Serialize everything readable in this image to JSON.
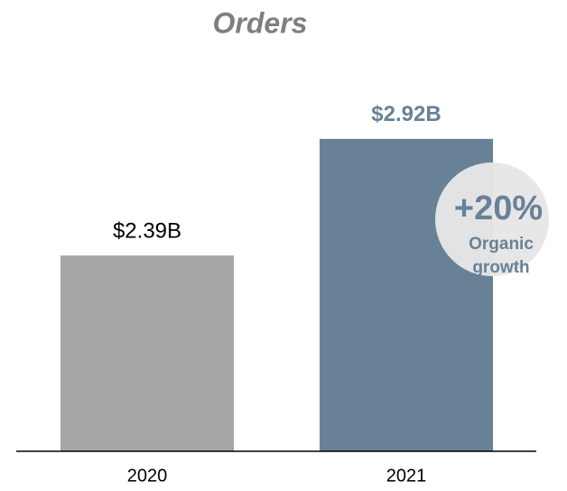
{
  "chart_data": {
    "type": "bar",
    "title": "Orders",
    "categories": [
      "2020",
      "2021"
    ],
    "values": [
      2.39,
      2.92
    ],
    "value_labels": [
      "$2.39B",
      "$2.92B"
    ],
    "colors": [
      "#a6a6a6",
      "#688197"
    ],
    "ylim": [
      1.5,
      3.1
    ],
    "annotation": {
      "headline": "+20%",
      "lines": [
        "Organic",
        "growth"
      ]
    }
  }
}
